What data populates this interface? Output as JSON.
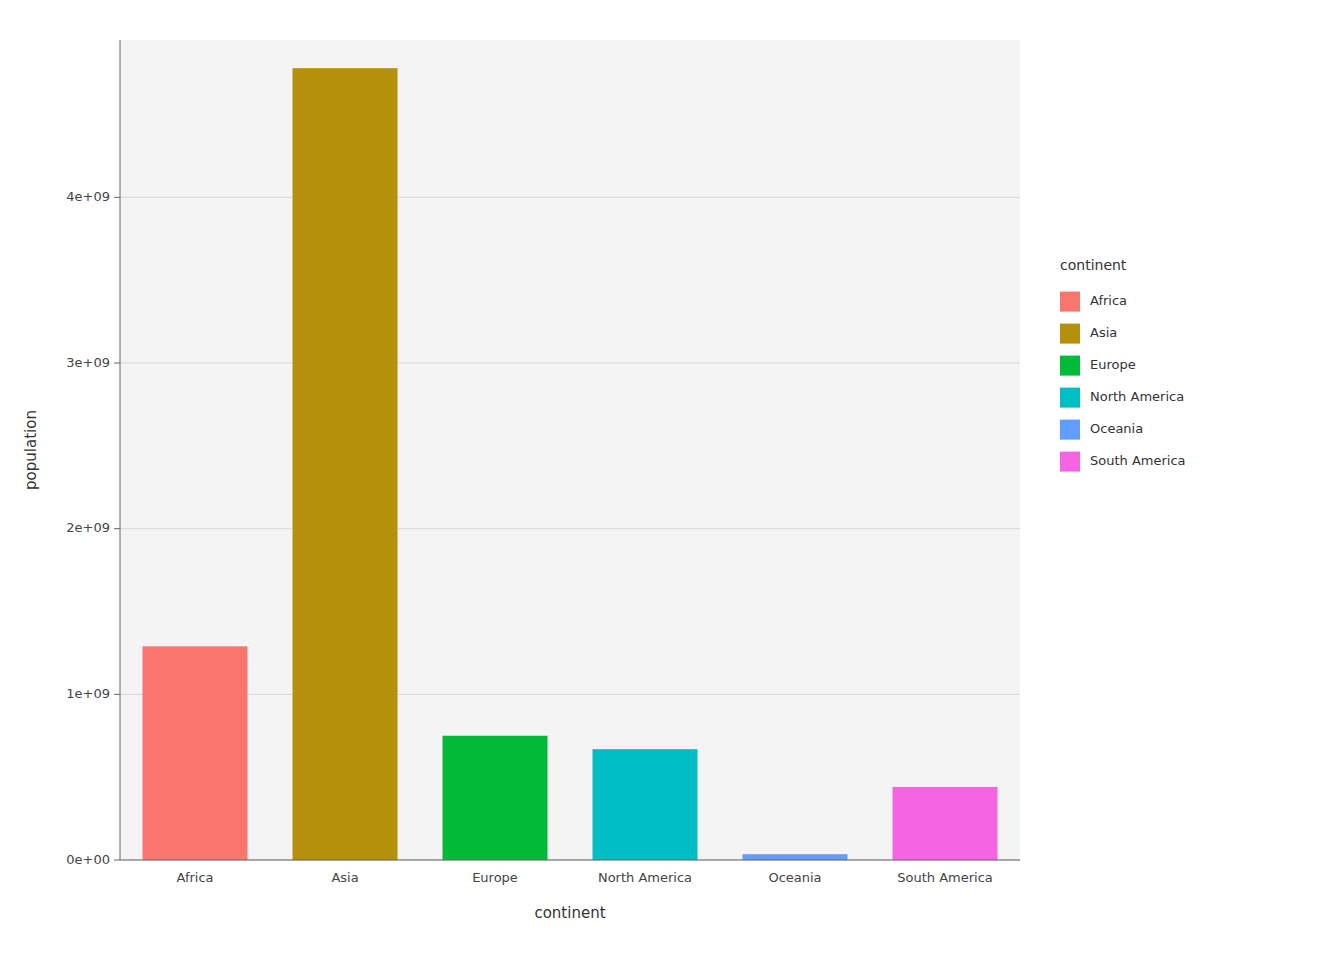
{
  "chart_data": {
    "type": "bar",
    "categories": [
      "Africa",
      "Asia",
      "Europe",
      "North America",
      "Oceania",
      "South America"
    ],
    "values": [
      1290000000,
      4780000000,
      750000000,
      669000000,
      35000000,
      441000000
    ],
    "colors": [
      "#F8766D",
      "#B5900A",
      "#00BA38",
      "#00BFC4",
      "#619CFF",
      "#F564E3"
    ],
    "xlabel": "continent",
    "ylabel": "population",
    "legend_title": "continent",
    "legend": "right",
    "grid": true,
    "ylim": [
      0,
      4950000000
    ],
    "yticks": [
      {
        "value": 0,
        "label": "0e+00"
      },
      {
        "value": 1000000000,
        "label": "1e+09"
      },
      {
        "value": 2000000000,
        "label": "2e+09"
      },
      {
        "value": 3000000000,
        "label": "3e+09"
      },
      {
        "value": 4000000000,
        "label": "4e+09"
      }
    ]
  }
}
